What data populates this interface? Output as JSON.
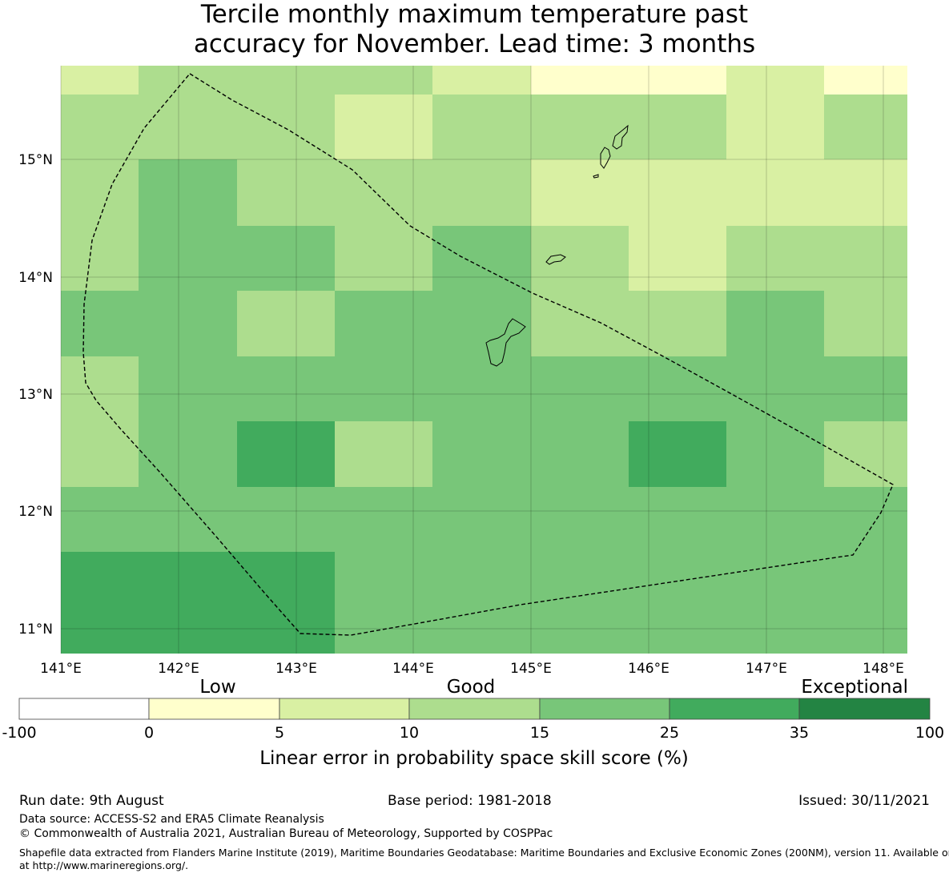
{
  "title_line1": "Tercile monthly maximum temperature past",
  "title_line2": "accuracy for November. Lead time: 3 months",
  "map": {
    "lon_labels": [
      "141°E",
      "142°E",
      "143°E",
      "144°E",
      "145°E",
      "146°E",
      "147°E",
      "148°E"
    ],
    "lat_labels": [
      "15°N",
      "14°N",
      "13°N",
      "12°N",
      "11°N"
    ],
    "grid": [
      [
        2,
        3,
        3,
        3,
        2,
        1,
        1,
        2,
        1
      ],
      [
        3,
        3,
        3,
        2,
        3,
        3,
        3,
        2,
        3
      ],
      [
        3,
        4,
        3,
        3,
        3,
        2,
        2,
        2,
        2
      ],
      [
        3,
        4,
        4,
        3,
        4,
        3,
        2,
        3,
        3
      ],
      [
        4,
        4,
        3,
        4,
        4,
        3,
        3,
        4,
        3
      ],
      [
        3,
        4,
        4,
        4,
        4,
        4,
        4,
        4,
        4
      ],
      [
        3,
        4,
        5,
        3,
        4,
        4,
        5,
        4,
        3
      ],
      [
        4,
        4,
        4,
        4,
        4,
        4,
        4,
        4,
        4
      ],
      [
        5,
        5,
        5,
        4,
        4,
        4,
        4,
        4,
        4
      ]
    ]
  },
  "legend": {
    "category_labels": [
      "Low",
      "Good",
      "Exceptional"
    ],
    "tick_labels": [
      "-100",
      "0",
      "5",
      "10",
      "15",
      "25",
      "35",
      "100"
    ],
    "colors": [
      "#ffffff",
      "#ffffcc",
      "#d9f0a3",
      "#addd8e",
      "#78c679",
      "#41ab5d",
      "#238443"
    ],
    "axis_label": "Linear error in probability space skill score (%)"
  },
  "footer": {
    "run_date": "Run date: 9th August",
    "base_period": "Base period: 1981-2018",
    "issued": "Issued: 30/11/2021",
    "data_source": "Data source: ACCESS-S2 and ERA5 Climate Reanalysis",
    "copyright": "© Commonwealth of Australia 2021, Australian Bureau of Meteorology, Supported by COSPPac",
    "shapefile_line1": "Shapefile data extracted from Flanders Marine Institute (2019), Maritime Boundaries Geodatabase: Maritime Boundaries and Exclusive Economic Zones (200NM), version 11. Available online",
    "shapefile_line2": "at http://www.marineregions.org/."
  }
}
